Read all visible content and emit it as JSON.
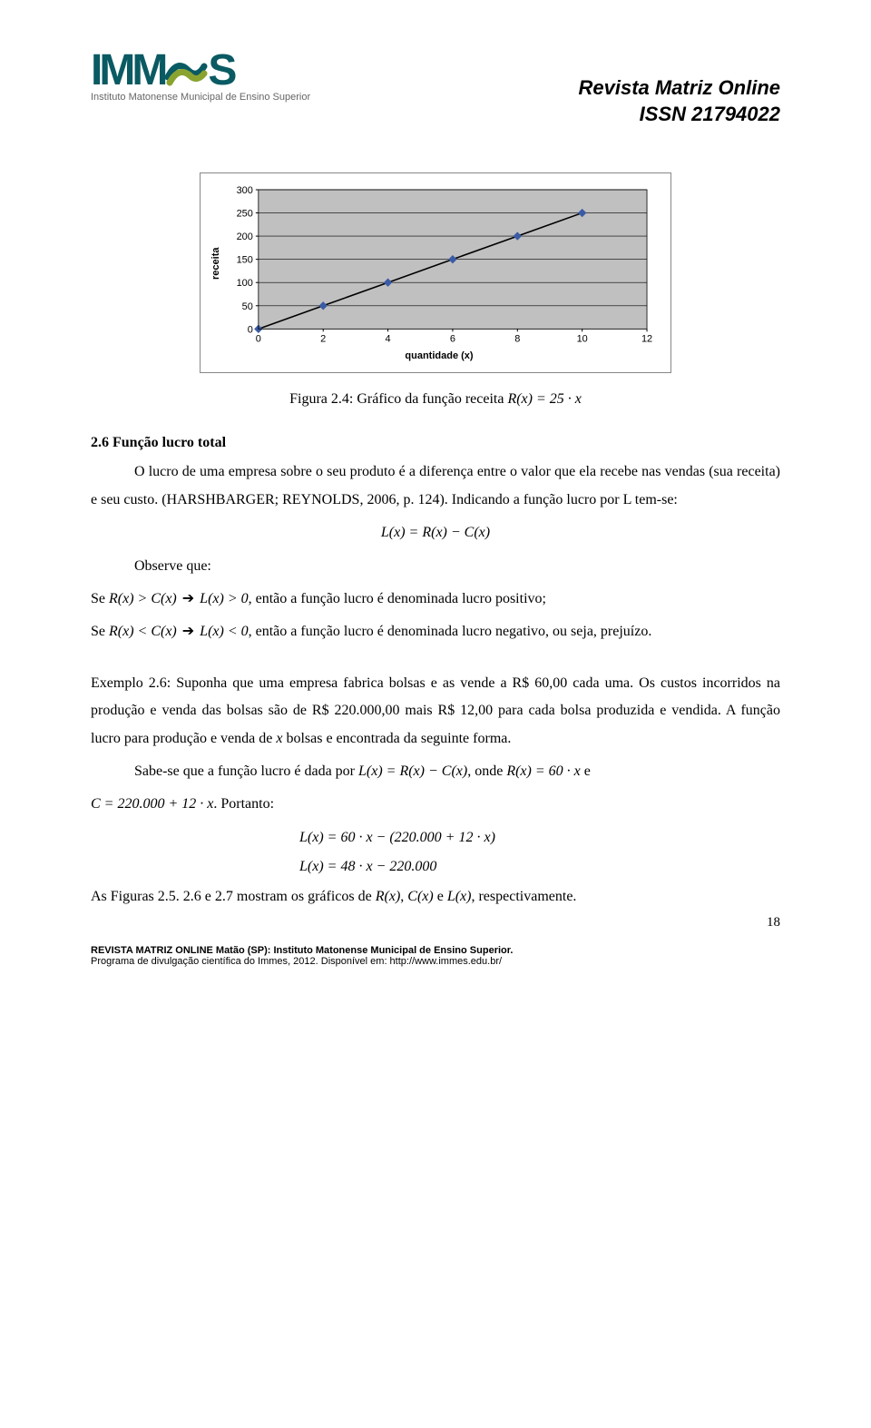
{
  "header": {
    "logo_text_1": "IMM",
    "logo_text_2": "S",
    "logo_subtitle": "Instituto Matonense Municipal de Ensino Superior",
    "journal_line1": "Revista Matriz Online",
    "journal_line2": "ISSN 21794022"
  },
  "chart": {
    "type": "line",
    "ylabel": "receita",
    "xlabel": "quantidade (x)",
    "x_values": [
      0,
      2,
      4,
      6,
      8,
      10,
      12
    ],
    "y_ticks": [
      0,
      50,
      100,
      150,
      200,
      250,
      300
    ],
    "series_points": [
      [
        0,
        0
      ],
      [
        2,
        50
      ],
      [
        4,
        100
      ],
      [
        6,
        150
      ],
      [
        8,
        200
      ],
      [
        10,
        250
      ]
    ],
    "xlim": [
      0,
      12
    ],
    "ylim": [
      0,
      300
    ],
    "line_color": "#000000",
    "marker_color": "#3b5ba5",
    "marker_size": 4,
    "grid_color": "#000000",
    "plot_bg": "#c0c0c0",
    "outer_bg": "#ffffff",
    "tick_fontsize": 11,
    "label_fontsize": 11
  },
  "caption_prefix": "Figura 2.4: Gráfico da função receita ",
  "caption_eq": "R(x) = 25 · x",
  "section_title": "2.6 Função lucro total",
  "p1": "O lucro de uma empresa sobre o seu produto é a diferença entre o valor que ela recebe nas vendas (sua receita) e seu custo. (HARSHBARGER; REYNOLDS, 2006, p. 124). Indicando a função lucro por L tem-se:",
  "eq1": "L(x) = R(x) − C(x)",
  "observe": "Observe que:",
  "l1a": "Se ",
  "l1b": "R(x) > C(x)",
  "l1c": " ➔ ",
  "l1d": "L(x) > 0",
  "l1e": ", então a função lucro é denominada lucro positivo;",
  "l2a": "Se ",
  "l2b": "R(x) < C(x)",
  "l2c": " ➔ ",
  "l2d": "L(x) < 0",
  "l2e": ", então a função lucro é denominada lucro negativo, ou seja, prejuízo.",
  "ex_a": "Exemplo 2.6: Suponha que uma empresa fabrica bolsas e as vende a R$ 60,00 cada uma. Os custos incorridos na produção e venda das bolsas são de R$ 220.000,00 mais R$ 12,00 para cada bolsa produzida e vendida.  A função lucro para produção e venda de ",
  "ex_x": "x",
  "ex_b": " bolsas e encontrada da seguinte forma.",
  "sabe_a": "Sabe-se que a função lucro é dada por ",
  "sabe_eq1": "L(x) = R(x) − C(x)",
  "sabe_mid": ", onde ",
  "sabe_eq2": "R(x) = 60 · x",
  "sabe_end": " e",
  "c_eq": "C = 220.000 + 12 · x",
  "c_end": ". Portanto:",
  "eq2": "L(x) = 60 · x − (220.000 + 12 · x)",
  "eq3": "L(x) = 48 · x − 220.000",
  "fig_a": "As Figuras 2.5. 2.6 e 2.7 mostram os gráficos de ",
  "fig_r": "R(x)",
  "fig_c1": ", ",
  "fig_c": "C(x)",
  "fig_e": " e ",
  "fig_l": "L(x)",
  "fig_end": ", respectivamente.",
  "pagenum": "18",
  "footer1": "REVISTA MATRIZ ONLINE Matão (SP): Instituto Matonense Municipal de Ensino Superior.",
  "footer2": "Programa de divulgação científica do Immes, 2012. Disponível em: http://www.immes.edu.br/"
}
